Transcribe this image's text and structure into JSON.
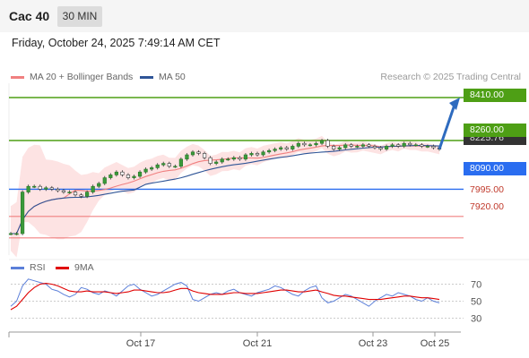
{
  "header": {
    "title": "Cac 40",
    "timeframe": "30 MIN"
  },
  "datetime": "Friday, October 24, 2025 7:49:14 AM CET",
  "legend": {
    "ma20_label": "MA 20 + Bollinger Bands",
    "ma50_label": "MA 50",
    "ma20_color": "#f08080",
    "ma50_color": "#2f5597"
  },
  "credit": "Research © 2025 Trading Central",
  "rsi_legend": {
    "rsi_label": "RSI",
    "ma_label": "9MA",
    "rsi_color": "#5b7fd9",
    "ma_color": "#e00000"
  },
  "levels": {
    "r2": "8410.00",
    "r1": "8260.00",
    "last": "8225.76",
    "s1": "8090.00",
    "s2": "7995.00",
    "s3": "7920.00"
  },
  "colors": {
    "resistance": "#4e9f15",
    "pivot": "#2a6df0",
    "support": "#f08080",
    "arrow": "#2e6bbf"
  },
  "chart_data": [
    {
      "type": "candlestick",
      "ylim": [
        7860,
        8460
      ],
      "x_ticks": [
        "Oct 17",
        "Oct 21",
        "Oct 23",
        "Oct 25"
      ],
      "close": [
        7935,
        7935,
        8080,
        8100,
        8100,
        8090,
        8095,
        8090,
        8085,
        8080,
        8080,
        8070,
        8065,
        8080,
        8100,
        8110,
        8130,
        8140,
        8150,
        8140,
        8130,
        8135,
        8150,
        8160,
        8165,
        8175,
        8180,
        8170,
        8170,
        8195,
        8210,
        8220,
        8215,
        8200,
        8180,
        8185,
        8195,
        8195,
        8200,
        8195,
        8210,
        8215,
        8210,
        8220,
        8225,
        8230,
        8235,
        8230,
        8240,
        8250,
        8245,
        8245,
        8250,
        8260,
        8240,
        8230,
        8235,
        8245,
        8240,
        8240,
        8245,
        8240,
        8235,
        8230,
        8240,
        8245,
        8240,
        8250,
        8245,
        8245,
        8240,
        8240,
        8235,
        8230
      ],
      "bollinger": {
        "upper_peak": 8200,
        "lower_min": 7875
      },
      "levels": {
        "r2": 8410,
        "r1": 8260,
        "pivot": 8090,
        "s2": 7995,
        "s3": 7920,
        "last": 8225.76
      }
    },
    {
      "type": "line",
      "name": "RSI",
      "ylim": [
        20,
        80
      ],
      "y_ticks": [
        "70",
        "50",
        "30"
      ],
      "rsi": [
        44,
        50,
        68,
        76,
        74,
        72,
        70,
        64,
        62,
        58,
        55,
        58,
        66,
        64,
        60,
        58,
        62,
        60,
        56,
        62,
        68,
        70,
        64,
        60,
        56,
        58,
        62,
        66,
        70,
        72,
        68,
        52,
        50,
        54,
        58,
        60,
        58,
        62,
        64,
        60,
        58,
        56,
        60,
        62,
        64,
        68,
        66,
        62,
        58,
        56,
        62,
        66,
        68,
        54,
        48,
        50,
        54,
        58,
        56,
        52,
        48,
        44,
        50,
        54,
        58,
        56,
        60,
        58,
        56,
        52,
        50,
        54,
        50,
        48
      ],
      "ma": [
        40,
        44,
        52,
        60,
        66,
        70,
        71,
        70,
        68,
        65,
        62,
        61,
        61,
        62,
        61,
        61,
        61,
        60,
        59,
        60,
        61,
        63,
        63,
        62,
        61,
        60,
        60,
        61,
        63,
        65,
        65,
        62,
        60,
        59,
        58,
        58,
        58,
        59,
        60,
        60,
        59,
        59,
        59,
        60,
        61,
        62,
        63,
        63,
        62,
        61,
        61,
        62,
        63,
        61,
        59,
        57,
        56,
        56,
        55,
        54,
        53,
        52,
        52,
        52,
        53,
        54,
        55,
        56,
        56,
        55,
        54,
        54,
        53,
        52
      ]
    }
  ]
}
